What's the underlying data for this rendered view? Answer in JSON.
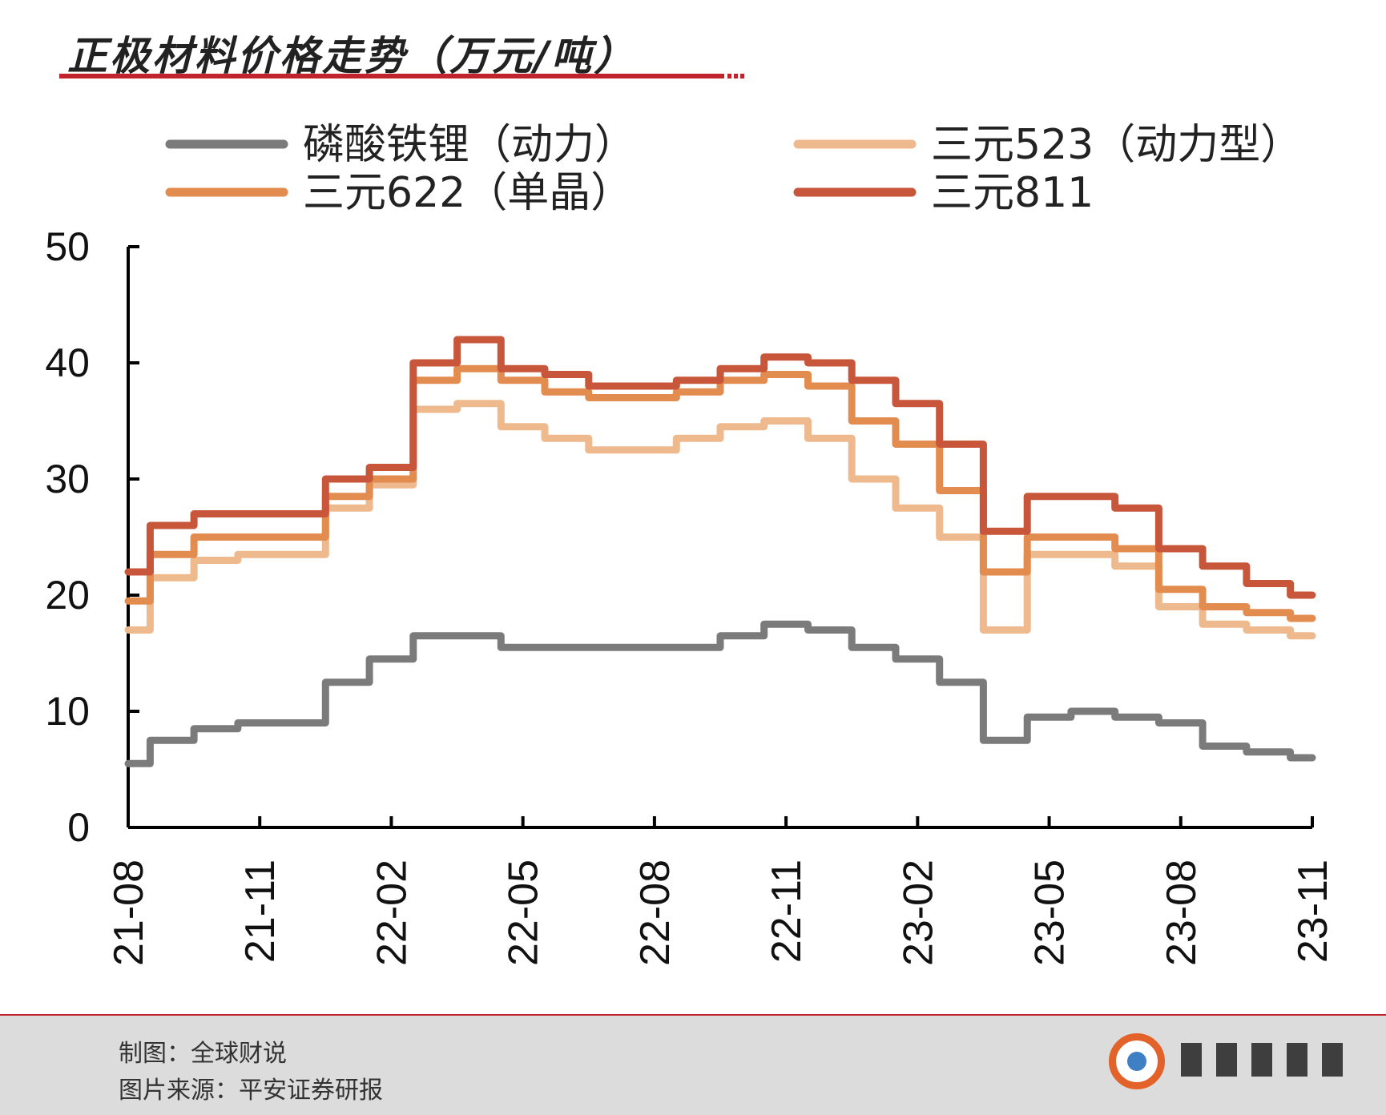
{
  "header": {
    "title": "正极材料价格走势（万元/吨）"
  },
  "footer": {
    "made_by": "制图：全球财说",
    "source": "图片来源：平安证券研报"
  },
  "colors": {
    "accent": "#c0232b",
    "lfp": "#7b7b7b",
    "ncm523": "#efb98e",
    "ncm622": "#e38c50",
    "ncm811": "#c8563b"
  },
  "chart_data": {
    "type": "line",
    "title": "正极材料价格走势（万元/吨）",
    "xlabel": "",
    "ylabel": "",
    "ylim": [
      0,
      50
    ],
    "yticks": [
      "0",
      "10",
      "20",
      "30",
      "40",
      "50"
    ],
    "xticks": [
      "21-08",
      "21-11",
      "22-02",
      "22-05",
      "22-08",
      "22-11",
      "23-02",
      "23-05",
      "23-08",
      "23-11"
    ],
    "grid": false,
    "legend_position": "top",
    "x": [
      "21-08",
      "21-09",
      "21-10",
      "21-11",
      "21-12",
      "22-01",
      "22-02",
      "22-03",
      "22-04",
      "22-05",
      "22-06",
      "22-07",
      "22-08",
      "22-09",
      "22-10",
      "22-11",
      "22-12",
      "23-01",
      "23-02",
      "23-03",
      "23-04",
      "23-05",
      "23-06",
      "23-07",
      "23-08",
      "23-09",
      "23-10",
      "23-11"
    ],
    "series": [
      {
        "name": "磷酸铁锂（动力）",
        "color": "#7b7b7b",
        "values": [
          5.5,
          7.5,
          8.5,
          9.0,
          9.0,
          12.5,
          14.5,
          16.5,
          16.5,
          15.5,
          15.5,
          15.5,
          15.5,
          15.5,
          16.5,
          17.5,
          17.0,
          15.5,
          14.5,
          12.5,
          7.5,
          9.5,
          10.0,
          9.5,
          9.0,
          7.0,
          6.5,
          6.0
        ]
      },
      {
        "name": "三元523（动力型）",
        "color": "#efb98e",
        "values": [
          17.0,
          21.5,
          23.0,
          23.5,
          23.5,
          27.5,
          29.5,
          36.0,
          36.5,
          34.5,
          33.5,
          32.5,
          32.5,
          33.5,
          34.5,
          35.0,
          33.5,
          30.0,
          27.5,
          25.0,
          17.0,
          23.5,
          23.5,
          22.5,
          19.0,
          17.5,
          17.0,
          16.5
        ]
      },
      {
        "name": "三元622（单晶）",
        "color": "#e38c50",
        "values": [
          19.5,
          23.5,
          25.0,
          25.0,
          25.0,
          28.5,
          30.0,
          38.5,
          39.5,
          38.5,
          37.5,
          37.0,
          37.0,
          37.5,
          38.5,
          39.0,
          38.0,
          35.0,
          33.0,
          29.0,
          22.0,
          25.0,
          25.0,
          24.0,
          20.5,
          19.0,
          18.5,
          18.0
        ]
      },
      {
        "name": "三元811",
        "color": "#c8563b",
        "values": [
          22.0,
          26.0,
          27.0,
          27.0,
          27.0,
          30.0,
          31.0,
          40.0,
          42.0,
          39.5,
          39.0,
          38.0,
          38.0,
          38.5,
          39.5,
          40.5,
          40.0,
          38.5,
          36.5,
          33.0,
          25.5,
          28.5,
          28.5,
          27.5,
          24.0,
          22.5,
          21.0,
          20.0
        ]
      }
    ]
  }
}
